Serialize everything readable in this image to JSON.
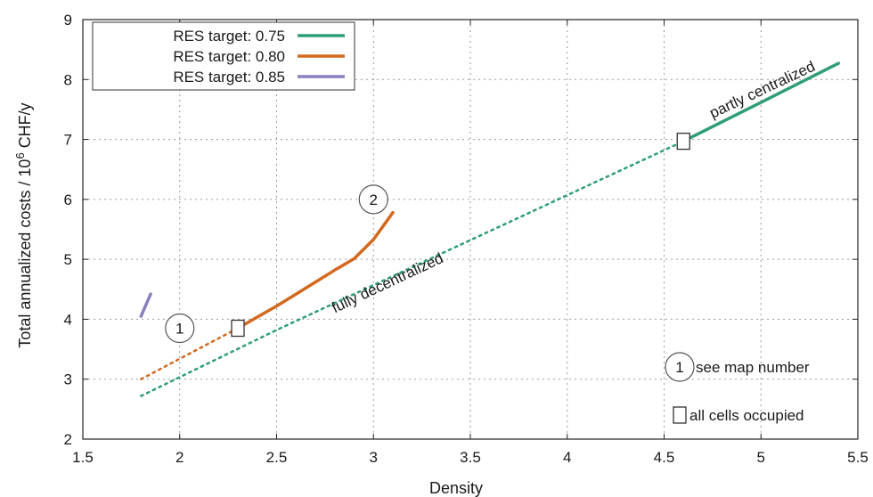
{
  "chart_data": {
    "type": "line",
    "title": "",
    "xlabel": "Density",
    "ylabel_main": "Total annualized costs / 10",
    "ylabel_sup": "6",
    "ylabel_tail": " CHF/y",
    "xlim": [
      1.5,
      5.5
    ],
    "ylim": [
      2,
      9
    ],
    "xticks": [
      "1.5",
      "2",
      "2.5",
      "3",
      "3.5",
      "4",
      "4.5",
      "5",
      "5.5"
    ],
    "yticks": [
      "2",
      "3",
      "4",
      "5",
      "6",
      "7",
      "8",
      "9"
    ],
    "grid": true,
    "legend_position": "top-left",
    "series": [
      {
        "name": "RES target: 0.75",
        "color": "#2e9e78",
        "solid": [
          [
            4.6,
            6.97
          ],
          [
            5.0,
            7.62
          ],
          [
            5.4,
            8.27
          ]
        ],
        "dotted": [
          [
            1.8,
            2.72
          ],
          [
            2.5,
            3.82
          ],
          [
            3.0,
            4.57
          ],
          [
            3.5,
            5.32
          ],
          [
            4.0,
            6.07
          ],
          [
            4.6,
            6.97
          ]
        ]
      },
      {
        "name": "RES target: 0.80",
        "color": "#d2691e",
        "solid": [
          [
            2.3,
            3.85
          ],
          [
            2.5,
            4.22
          ],
          [
            2.6,
            4.42
          ],
          [
            2.8,
            4.82
          ],
          [
            2.9,
            5.01
          ],
          [
            3.0,
            5.33
          ],
          [
            3.1,
            5.78
          ]
        ],
        "dotted": [
          [
            1.8,
            3.0
          ],
          [
            2.3,
            3.85
          ]
        ]
      },
      {
        "name": "RES target: 0.85",
        "color": "#8c7fc0",
        "solid": [
          [
            1.8,
            4.05
          ],
          [
            1.85,
            4.42
          ]
        ],
        "dotted": []
      }
    ],
    "occupied_markers": [
      [
        2.3,
        3.85
      ],
      [
        4.6,
        6.97
      ]
    ],
    "map_markers": [
      {
        "label": "1",
        "x": 2.0,
        "y": 3.85
      },
      {
        "label": "2",
        "x": 3.0,
        "y": 6.0
      }
    ],
    "annotations": [
      {
        "text": "fully decentralized",
        "x": 2.8,
        "y": 4.1
      },
      {
        "text": "partly centralized",
        "x": 4.75,
        "y": 7.35
      }
    ],
    "notes": [
      {
        "marker": "1",
        "text": "see map number"
      },
      {
        "marker": "box",
        "text": "all cells occupied"
      }
    ]
  }
}
